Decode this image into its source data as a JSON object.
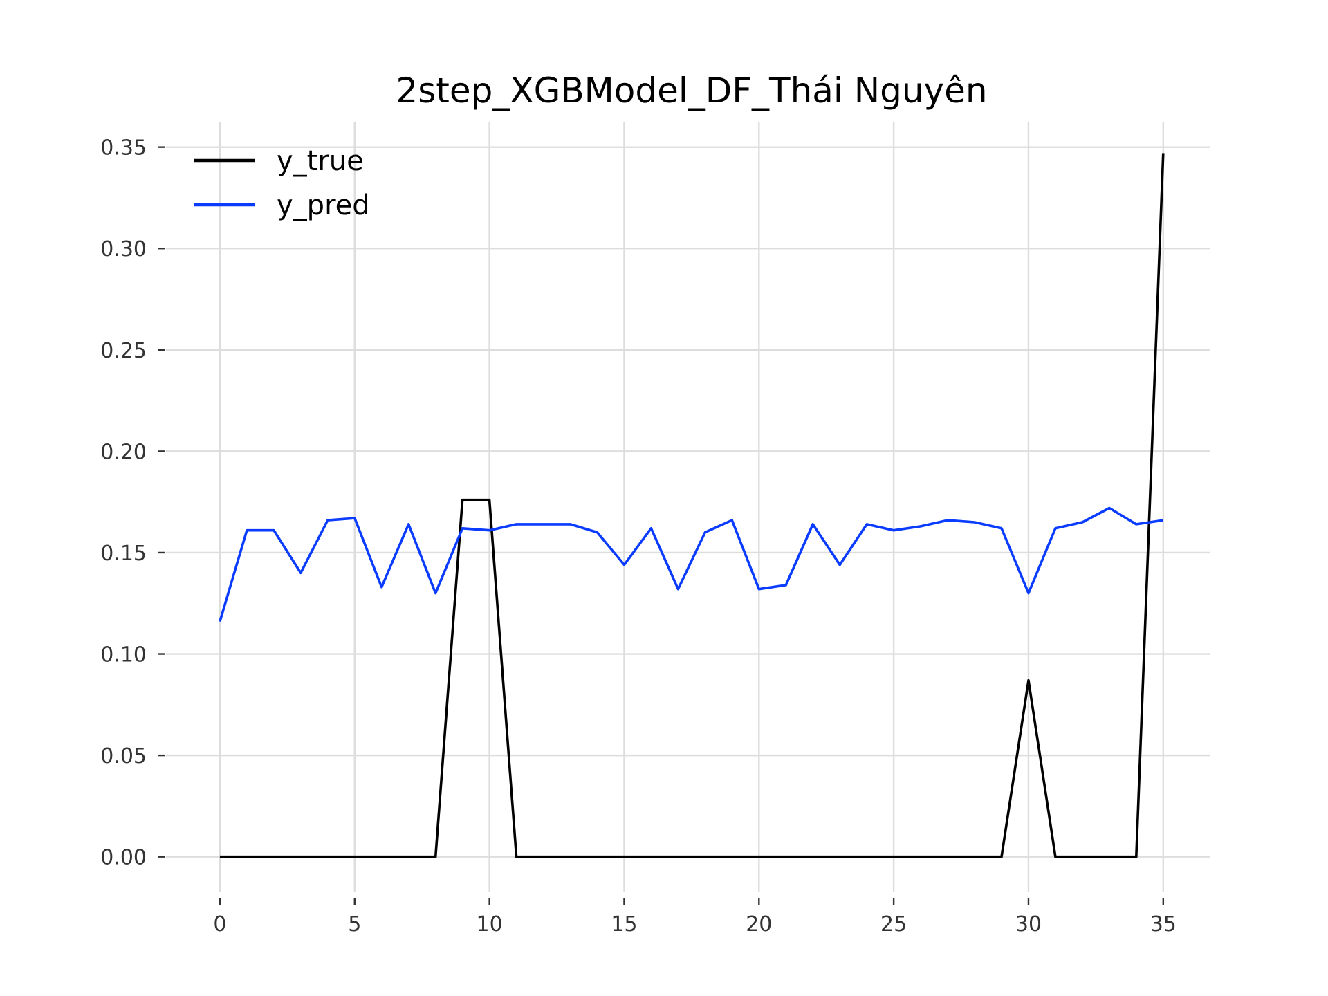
{
  "chart_data": {
    "type": "line",
    "title": "2step_XGBModel_DF_Thái Nguyên",
    "xlabel": "",
    "ylabel": "",
    "xlim": [
      -2,
      36.75
    ],
    "ylim": [
      -0.0175,
      0.3625
    ],
    "grid": true,
    "legend_position": "upper-left",
    "x_ticks": [
      0,
      5,
      10,
      15,
      20,
      25,
      30,
      35
    ],
    "x_tick_labels": [
      "0",
      "5",
      "10",
      "15",
      "20",
      "25",
      "30",
      "35"
    ],
    "y_ticks": [
      0.0,
      0.05,
      0.1,
      0.15,
      0.2,
      0.25,
      0.3,
      0.35
    ],
    "y_tick_labels": [
      "0.00",
      "0.05",
      "0.10",
      "0.15",
      "0.20",
      "0.25",
      "0.30",
      "0.35"
    ],
    "x": [
      0,
      1,
      2,
      3,
      4,
      5,
      6,
      7,
      8,
      9,
      10,
      11,
      12,
      13,
      14,
      15,
      16,
      17,
      18,
      19,
      20,
      21,
      22,
      23,
      24,
      25,
      26,
      27,
      28,
      29,
      30,
      31,
      32,
      33,
      34,
      35
    ],
    "series": [
      {
        "name": "y_true",
        "color": "#000000",
        "values": [
          0,
          0,
          0,
          0,
          0,
          0,
          0,
          0,
          0,
          0.176,
          0.176,
          0,
          0,
          0,
          0,
          0,
          0,
          0,
          0,
          0,
          0,
          0,
          0,
          0,
          0,
          0,
          0,
          0,
          0,
          0,
          0.087,
          0,
          0,
          0,
          0,
          0.347
        ]
      },
      {
        "name": "y_pred",
        "color": "#0a3cff",
        "values": [
          0.116,
          0.161,
          0.161,
          0.14,
          0.166,
          0.167,
          0.133,
          0.164,
          0.13,
          0.162,
          0.161,
          0.164,
          0.164,
          0.164,
          0.16,
          0.144,
          0.162,
          0.132,
          0.16,
          0.166,
          0.132,
          0.134,
          0.164,
          0.144,
          0.164,
          0.161,
          0.163,
          0.166,
          0.165,
          0.162,
          0.13,
          0.162,
          0.165,
          0.172,
          0.164,
          0.166
        ]
      }
    ]
  }
}
